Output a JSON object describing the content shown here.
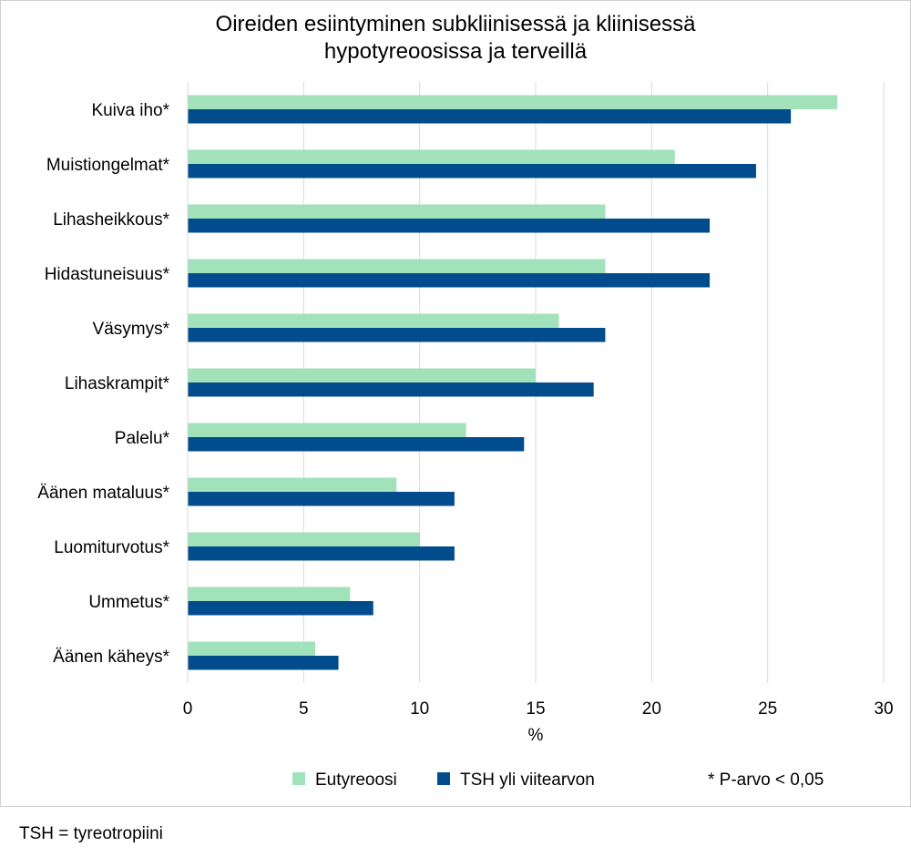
{
  "chart_data": {
    "type": "bar",
    "orientation": "horizontal",
    "title_lines": [
      "Oireiden esiintyminen subkliinisessä ja kliinisessä",
      "hypotyreoosissa ja terveillä"
    ],
    "categories": [
      "Kuiva iho*",
      "Muistiongelmat*",
      "Lihasheikkous*",
      "Hidastuneisuus*",
      "Väsymys*",
      "Lihaskrampit*",
      "Palelu*",
      "Äänen mataluus*",
      "Luomiturvotus*",
      "Ummetus*",
      "Äänen käheys*"
    ],
    "series": [
      {
        "name": "Eutyreoosi",
        "color": "#a2e2bb",
        "values": [
          28,
          21,
          18,
          18,
          16,
          15,
          12,
          9,
          10,
          7,
          5.5
        ]
      },
      {
        "name": "TSH yli viitearvon",
        "color": "#004c8c",
        "values": [
          26,
          24.5,
          22.5,
          22.5,
          18,
          17.5,
          14.5,
          11.5,
          11.5,
          8,
          6.5
        ]
      }
    ],
    "xlabel": "%",
    "xlim": [
      0,
      30
    ],
    "xticks": [
      0,
      5,
      10,
      15,
      20,
      25,
      30
    ],
    "grid": "vertical",
    "legend_position": "bottom",
    "annotation": "* P-arvo < 0,05"
  },
  "footnote": "TSH = tyreotropiini"
}
